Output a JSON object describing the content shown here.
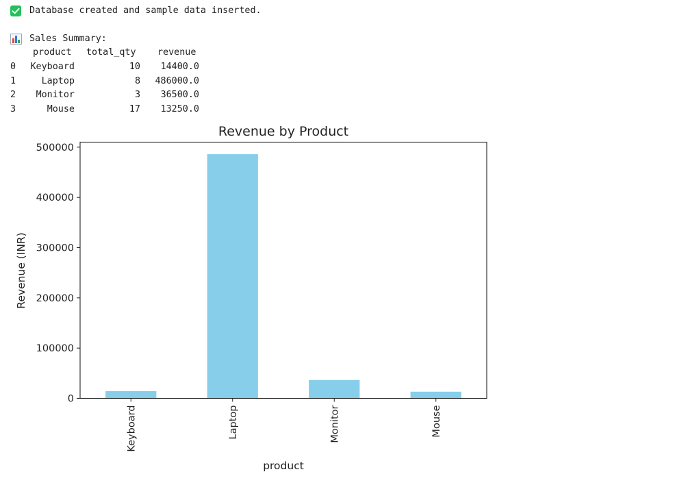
{
  "output": {
    "status_message": "Database created and sample data inserted.",
    "summary_heading": "Sales Summary:",
    "table": {
      "columns": [
        "product",
        "total_qty",
        "revenue"
      ],
      "rows": [
        {
          "index": "0",
          "product": "Keyboard",
          "total_qty": "10",
          "revenue": "14400.0"
        },
        {
          "index": "1",
          "product": "Laptop",
          "total_qty": "8",
          "revenue": "486000.0"
        },
        {
          "index": "2",
          "product": "Monitor",
          "total_qty": "3",
          "revenue": "36500.0"
        },
        {
          "index": "3",
          "product": "Mouse",
          "total_qty": "17",
          "revenue": "13250.0"
        }
      ]
    },
    "icons": {
      "status": "check-mark-icon",
      "summary": "bar-chart-icon"
    }
  },
  "chart_data": {
    "type": "bar",
    "title": "Revenue by Product",
    "xlabel": "product",
    "ylabel": "Revenue (INR)",
    "categories": [
      "Keyboard",
      "Laptop",
      "Monitor",
      "Mouse"
    ],
    "values": [
      14400,
      486000,
      36500,
      13250
    ],
    "ylim": [
      0,
      510000
    ],
    "yticks": [
      0,
      100000,
      200000,
      300000,
      400000,
      500000
    ],
    "ytick_labels": [
      "0",
      "100000",
      "200000",
      "300000",
      "400000",
      "500000"
    ],
    "bar_color": "#87ceeb",
    "grid": false,
    "legend": false
  }
}
